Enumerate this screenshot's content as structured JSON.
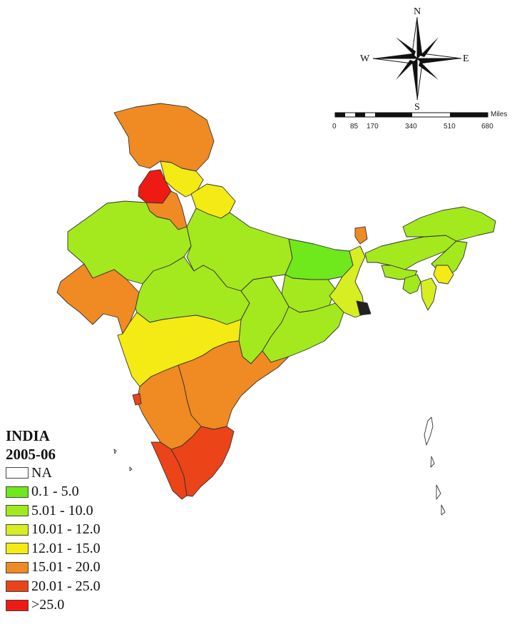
{
  "legend": {
    "title_line1": "INDIA",
    "title_line2": "2005-06",
    "classes": [
      {
        "label": "NA",
        "color": "#ffffff"
      },
      {
        "label": "0.1 - 5.0",
        "color": "#6fe81c"
      },
      {
        "label": "5.01 - 10.0",
        "color": "#a4e81e"
      },
      {
        "label": "10.01 - 12.0",
        "color": "#d6ee22"
      },
      {
        "label": "12.01 - 15.0",
        "color": "#f4ea14"
      },
      {
        "label": "15.01 - 20.0",
        "color": "#f08a22"
      },
      {
        "label": "20.01 - 25.0",
        "color": "#ea4418"
      },
      {
        "label": ">25.0",
        "color": "#ee1a14"
      }
    ]
  },
  "compass": {
    "north": "N",
    "south": "S",
    "east": "E",
    "west": "W"
  },
  "scale_bar": {
    "unit": "Miles",
    "ticks": [
      "0",
      "85",
      "170",
      "340",
      "510",
      "680"
    ]
  }
}
